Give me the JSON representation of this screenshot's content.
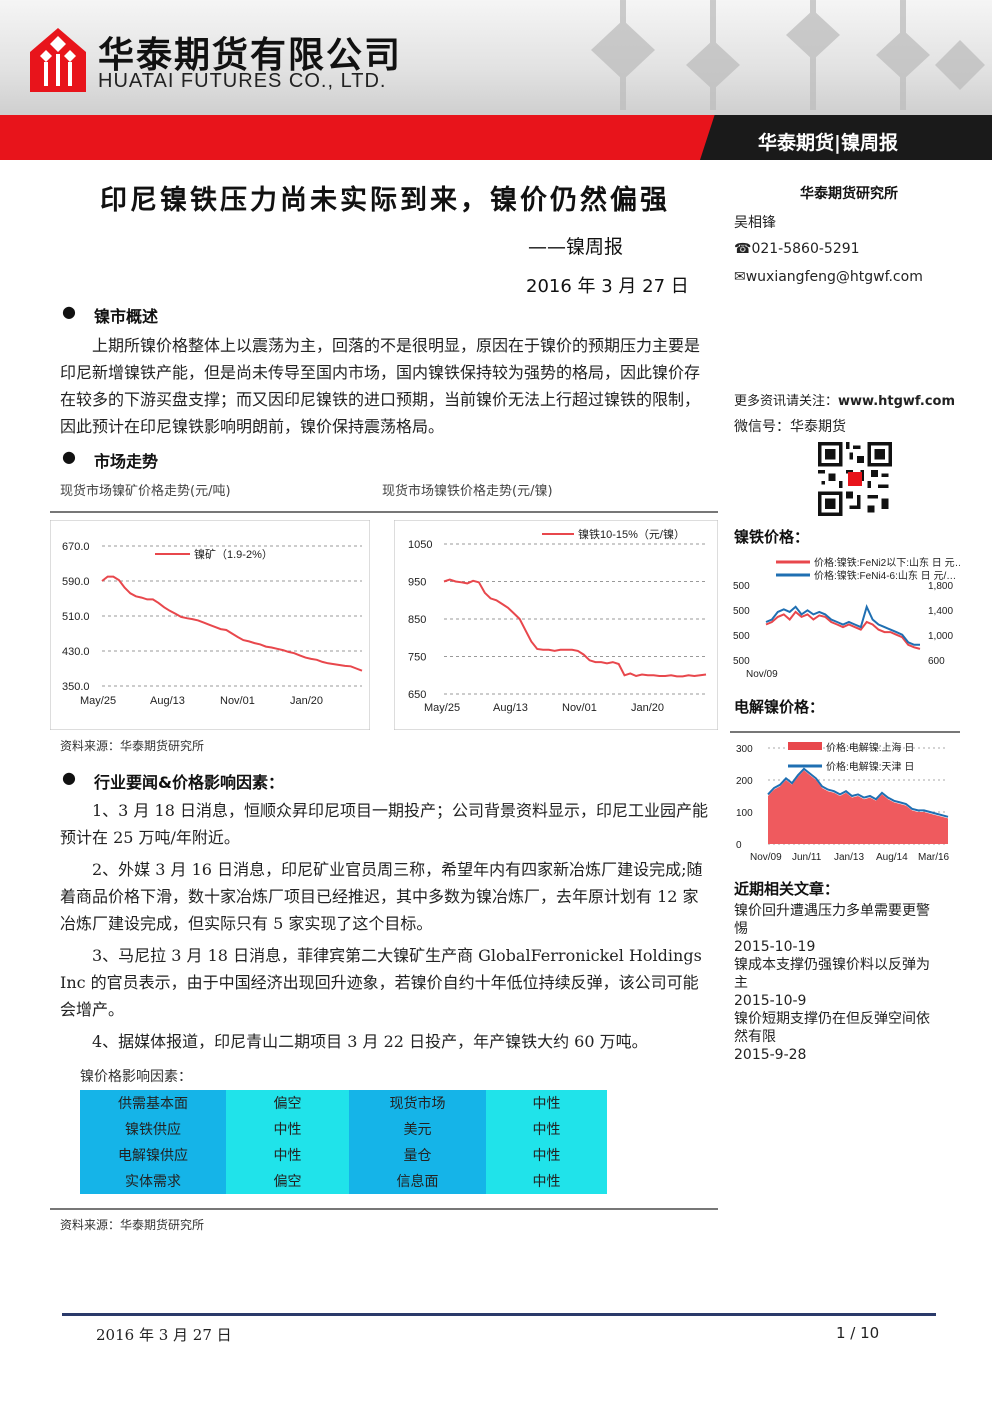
{
  "header": {
    "company_cn": "华泰期货有限公司",
    "company_en": "HUATAI FUTURES CO., LTD.",
    "band_label": "华泰期货|镍周报"
  },
  "title": {
    "main": "印尼镍铁压力尚未实际到来，镍价仍然偏强",
    "subtitle": "——镍周报",
    "date": "2016 年 3 月 27 日"
  },
  "section1": {
    "heading": "镍市概述",
    "paragraph": "上期所镍价格整体上以震荡为主，回落的不是很明显，原因在于镍价的预期压力主要是印尼新增镍铁产能，但是尚未传导至国内市场，国内镍铁保持较为强势的格局，因此镍价存在较多的下游买盘支撑；而又因印尼镍铁的进口预期，当前镍价无法上行超过镍铁的限制，因此预计在印尼镍铁影响明朗前，镍价保持震荡格局。"
  },
  "section2": {
    "heading": "市场走势",
    "caption_left": "现货市场镍矿价格走势(元/吨)",
    "caption_right": "现货市场镍铁价格走势(元/镍)",
    "source": "资料来源：华泰期货研究所"
  },
  "section3": {
    "heading": "行业要闻&价格影响因素：",
    "news": [
      "1、3 月 18 日消息，恒顺众昇印尼项目一期投产；公司背景资料显示，印尼工业园产能预计在 25 万吨/年附近。",
      "2、外媒 3 月 16 日消息，印尼矿业官员周三称，希望年内有四家新冶炼厂建设完成;随着商品价格下滑，数十家冶炼厂项目已经推迟，其中多数为镍冶炼厂，去年原计划有 12 家冶炼厂建设完成，但实际只有 5 家实现了这个目标。",
      "3、马尼拉 3 月 18 日消息，菲律宾第二大镍矿生产商 GlobalFerronickel Holdings Inc 的官员表示，由于中国经济出现回升迹象，若镍价自约十年低位持续反弹，该公司可能会增产。",
      "4、据媒体报道，印尼青山二期项目 3 月 22 日投产，年产镍铁大约 60 万吨。"
    ],
    "table_caption": "镍价格影响因素：",
    "table": [
      [
        "供需基本面",
        "偏空",
        "现货市场",
        "中性"
      ],
      [
        "镍铁供应",
        "中性",
        "美元",
        "中性"
      ],
      [
        "电解镍供应",
        "中性",
        "量仓",
        "中性"
      ],
      [
        "实体需求",
        "偏空",
        "信息面",
        "中性"
      ]
    ],
    "source": "资料来源：华泰期货研究所"
  },
  "sidebar": {
    "institute": "华泰期货研究所",
    "author": "吴相锋",
    "phone": "021-5860-5291",
    "email": "wuxiangfeng@htgwf.com",
    "more_info_label": "更多资讯请关注：",
    "more_info_url": "www.htgwf.com",
    "wechat": "微信号：华泰期货",
    "ferronickel_heading": "镍铁价格：",
    "electrolytic_heading": "电解镍价格：",
    "articles_heading": "近期相关文章：",
    "articles": [
      {
        "title": "镍价回升遭遇压力多单需要更警惕",
        "date": "2015-10-19"
      },
      {
        "title": "镍成本支撑仍强镍价料以反弹为主",
        "date": "2015-10-9"
      },
      {
        "title": "镍价短期支撑仍在但反弹空间依然有限",
        "date": "2015-9-28"
      }
    ]
  },
  "footer": {
    "date": "2016 年 3 月 27 日",
    "page": "1 / 10"
  },
  "chart_data": [
    {
      "type": "line",
      "title": "",
      "series": [
        {
          "name": "镍矿（1.9-2%）",
          "color": "#e8474c",
          "values": [
            590,
            600,
            600,
            592,
            575,
            562,
            555,
            552,
            548,
            548,
            540,
            530,
            522,
            515,
            508,
            505,
            503,
            500,
            495,
            490,
            485,
            480,
            478,
            470,
            462,
            455,
            452,
            448,
            445,
            440,
            438,
            435,
            432,
            428,
            425,
            420,
            415,
            412,
            410,
            405,
            402,
            400,
            398,
            396,
            395,
            390,
            385
          ]
        }
      ],
      "x_ticks": [
        "May/25",
        "Aug/13",
        "Nov/01",
        "Jan/20"
      ],
      "ylim": [
        350,
        670
      ],
      "y_ticks": [
        "350.0",
        "430.0",
        "510.0",
        "590.0",
        "670.0"
      ],
      "grid": true,
      "legend": "top"
    },
    {
      "type": "line",
      "title": "",
      "series": [
        {
          "name": "镍铁10-15%（元/镍）",
          "color": "#e8474c",
          "values": [
            950,
            955,
            950,
            948,
            945,
            952,
            948,
            920,
            905,
            900,
            890,
            880,
            865,
            850,
            820,
            790,
            770,
            768,
            768,
            765,
            768,
            768,
            768,
            765,
            755,
            740,
            735,
            735,
            732,
            735,
            730,
            700,
            705,
            698,
            702,
            700,
            700,
            698,
            698,
            700,
            697,
            697,
            700,
            698,
            700,
            702
          ]
        }
      ],
      "x_ticks": [
        "May/25",
        "Aug/13",
        "Nov/01",
        "Jan/20"
      ],
      "ylim": [
        650,
        1050
      ],
      "y_ticks": [
        "650",
        "750",
        "850",
        "950",
        "1050"
      ],
      "grid": true,
      "legend": "top-right"
    },
    {
      "type": "line",
      "title": "镍铁价格：",
      "series": [
        {
          "name": "价格:镍铁:FeNi2以下:山东 日 元…",
          "color": "#e8474c",
          "values": [
            1100,
            1150,
            1250,
            1300,
            1200,
            1350,
            1250,
            1300,
            1200,
            1280,
            1250,
            1150,
            1100,
            1050,
            1100,
            1050,
            1000,
            1150,
            1100,
            1000,
            950,
            950,
            900,
            850,
            700,
            650,
            620
          ]
        },
        {
          "name": "价格:镍铁:FeNi4-6:山东 日 元/…",
          "color": "#1f6fb2",
          "values": [
            1150,
            1200,
            1350,
            1400,
            1350,
            1450,
            1300,
            1380,
            1300,
            1350,
            1300,
            1200,
            1150,
            1100,
            1150,
            1100,
            1050,
            1450,
            1200,
            1100,
            1050,
            1000,
            950,
            900,
            750,
            700,
            700
          ]
        }
      ],
      "x_ticks": [
        "Nov/09"
      ],
      "y_ticks_left": [
        "500",
        "500",
        "500",
        "500"
      ],
      "y_ticks_right": [
        "600",
        "1,000",
        "1,400",
        "1,800"
      ],
      "legend": "top"
    },
    {
      "type": "area",
      "title": "电解镍价格：",
      "series": [
        {
          "name": "价格:电解镍:上海 日",
          "color": "#e8474c",
          "values": [
            150,
            170,
            180,
            200,
            185,
            210,
            230,
            215,
            200,
            175,
            165,
            160,
            150,
            160,
            145,
            150,
            140,
            145,
            135,
            155,
            140,
            130,
            125,
            120,
            105,
            100,
            100,
            95,
            90,
            85,
            80
          ]
        },
        {
          "name": "价格:电解镍:天津 日",
          "color": "#1f6fb2",
          "values": [
            155,
            175,
            185,
            205,
            190,
            215,
            235,
            220,
            205,
            180,
            170,
            165,
            155,
            165,
            150,
            155,
            145,
            150,
            140,
            160,
            145,
            135,
            130,
            125,
            110,
            105,
            105,
            100,
            95,
            90,
            85
          ]
        }
      ],
      "x_ticks": [
        "Nov/09",
        "Jun/11",
        "Jan/13",
        "Aug/14",
        "Mar/16"
      ],
      "ylim": [
        0,
        300
      ],
      "y_ticks": [
        "0",
        "100",
        "200",
        "300"
      ],
      "legend": "top"
    }
  ]
}
